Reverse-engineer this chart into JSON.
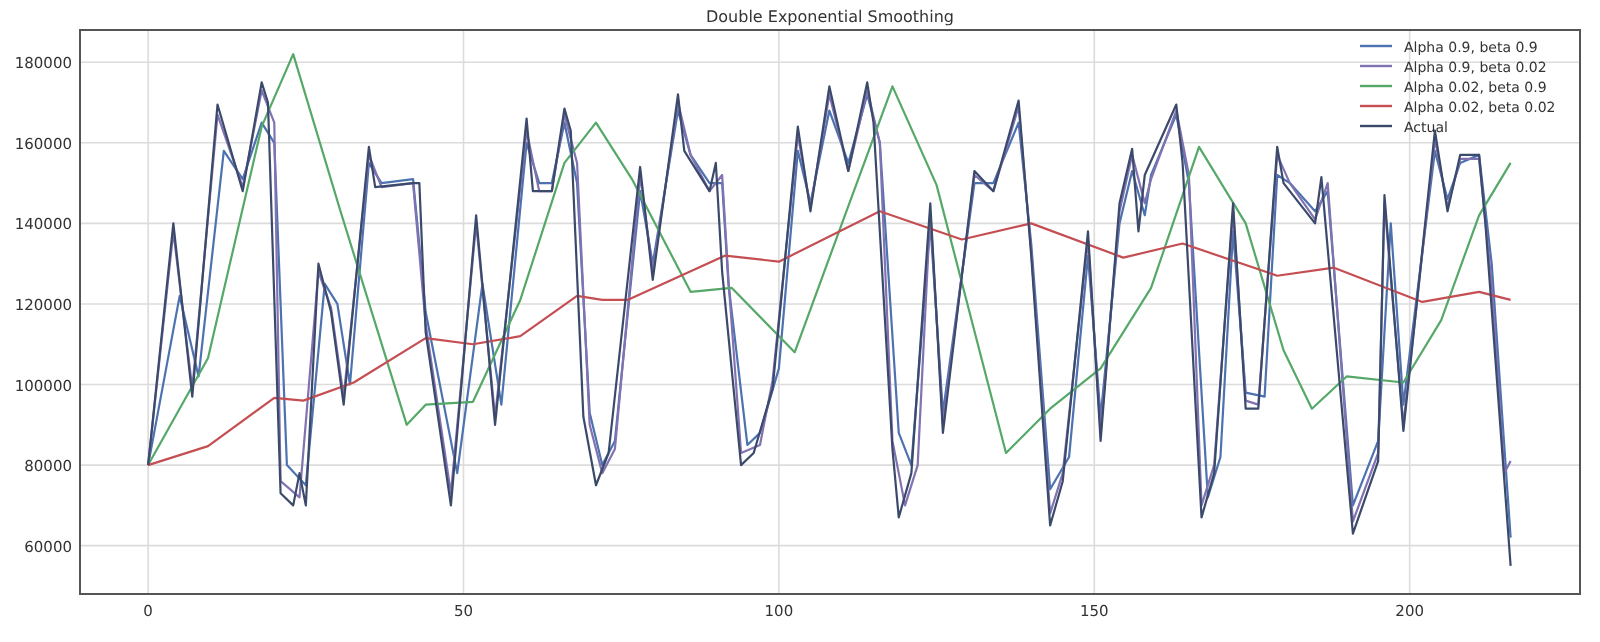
{
  "chart_data": {
    "type": "line",
    "title": "Double Exponential Smoothing",
    "xlim": [
      -10.8,
      227
    ],
    "xticks": [
      0,
      50,
      100,
      150,
      200
    ],
    "ylim": [
      48000,
      188000
    ],
    "yticks": [
      60000,
      80000,
      100000,
      120000,
      140000,
      160000,
      180000
    ],
    "grid": true,
    "legend": "top right",
    "line_style": "solid",
    "marker": "none",
    "series": [
      {
        "name": "Alpha 0.9, beta 0.9",
        "color": "#4c72b0",
        "x": [
          0,
          5,
          8,
          12,
          15,
          18,
          20,
          22,
          25,
          28,
          30,
          32,
          35,
          37,
          42,
          44,
          49,
          53,
          56,
          60,
          62,
          64,
          66,
          68,
          70,
          72,
          74,
          78,
          80,
          84,
          86,
          89,
          91,
          92,
          95,
          97,
          100,
          103,
          105,
          108,
          111,
          114,
          116,
          119,
          121,
          124,
          126,
          131,
          134,
          138,
          140,
          143,
          146,
          149,
          151,
          154,
          156,
          158,
          159,
          163,
          165,
          168,
          170,
          172,
          174,
          177,
          179,
          181,
          185,
          187,
          191,
          195,
          197,
          199,
          204,
          206,
          208,
          211,
          213,
          216
        ],
        "values": [
          80000,
          122000,
          102000,
          158000,
          151000,
          165000,
          160000,
          80000,
          75000,
          125000,
          120000,
          100000,
          155000,
          150000,
          151000,
          118000,
          78000,
          125000,
          95000,
          160000,
          150000,
          150000,
          165000,
          150000,
          93000,
          80000,
          86000,
          148000,
          130000,
          168000,
          157000,
          150000,
          150000,
          125000,
          85000,
          88000,
          104000,
          158000,
          145000,
          168000,
          155000,
          172000,
          160000,
          88000,
          80000,
          140000,
          93000,
          150000,
          150000,
          165000,
          135000,
          74000,
          82000,
          132000,
          92000,
          140000,
          153000,
          142000,
          152000,
          167000,
          150000,
          72000,
          82000,
          138000,
          98000,
          97000,
          152000,
          150000,
          143000,
          148000,
          70000,
          86000,
          140000,
          95000,
          158000,
          146000,
          155000,
          157000,
          130000,
          62000
        ]
      },
      {
        "name": "Alpha 0.9, beta 0.02",
        "color": "#8172b2",
        "x": [
          0,
          4,
          7,
          11,
          15,
          18,
          20,
          21,
          24,
          27,
          29,
          31,
          35,
          37,
          42,
          44,
          48,
          52,
          55,
          60,
          62,
          64,
          66,
          68,
          70,
          72,
          74,
          78,
          80,
          84,
          86,
          89,
          91,
          92,
          94,
          97,
          99,
          103,
          105,
          108,
          111,
          114,
          116,
          118,
          120,
          122,
          124,
          126,
          131,
          134,
          138,
          140,
          143,
          145,
          149,
          151,
          154,
          156,
          158,
          159,
          163,
          165,
          167,
          169,
          172,
          174,
          176,
          179,
          181,
          185,
          187,
          191,
          195,
          196,
          199,
          204,
          206,
          208,
          211,
          213,
          215,
          216
        ],
        "values": [
          80000,
          138000,
          99000,
          167000,
          149000,
          173000,
          165000,
          76000,
          72000,
          128000,
          119000,
          97000,
          157000,
          149000,
          150000,
          115000,
          73000,
          140000,
          92000,
          163000,
          148000,
          148000,
          167000,
          155000,
          90000,
          78000,
          84000,
          152000,
          128000,
          170000,
          157000,
          148000,
          152000,
          126000,
          83000,
          85000,
          101000,
          162000,
          144000,
          172000,
          153000,
          173000,
          160000,
          86000,
          70000,
          80000,
          143000,
          90000,
          152000,
          148000,
          169000,
          133000,
          68000,
          78000,
          136000,
          88000,
          143000,
          157000,
          145000,
          151000,
          168000,
          152000,
          70000,
          80000,
          143000,
          96000,
          95000,
          157000,
          150000,
          141000,
          150000,
          66000,
          83000,
          145000,
          90000,
          161000,
          144000,
          156000,
          156000,
          125000,
          78000,
          81000
        ]
      },
      {
        "name": "Alpha 0.02, beta 0.9",
        "color": "#55a868",
        "x": [
          0,
          9.5,
          18,
          23,
          30.5,
          41,
          44,
          51.5,
          59,
          66,
          71,
          76.7,
          86,
          92.5,
          102.5,
          110,
          118,
          125,
          136,
          143,
          151,
          159,
          166.6,
          174,
          180,
          184.5,
          190,
          199,
          205,
          211,
          216
        ],
        "values": [
          80000,
          106600,
          164000,
          182000,
          143000,
          90000,
          95000,
          95700,
          121000,
          155000,
          165000,
          151000,
          123000,
          124000,
          108000,
          140000,
          174000,
          149500,
          83000,
          94000,
          104000,
          124000,
          159000,
          140000,
          108500,
          94000,
          102000,
          100500,
          116000,
          142000,
          155000
        ]
      },
      {
        "name": "Alpha 0.02, beta 0.02",
        "color": "#c44e52",
        "x": [
          0,
          9.5,
          20,
          24.6,
          32.6,
          44,
          51.5,
          59,
          68,
          72,
          76,
          91.5,
          100,
          116,
          129,
          140,
          154.6,
          164,
          179,
          188,
          202,
          211,
          216
        ],
        "values": [
          80000,
          84700,
          96700,
          96000,
          100500,
          111500,
          110000,
          112000,
          122000,
          121000,
          121000,
          132000,
          130500,
          143000,
          136000,
          140000,
          131500,
          135000,
          127000,
          129000,
          120500,
          123000,
          121000
        ]
      },
      {
        "name": "Actual",
        "color": "#3b4a6b",
        "x": [
          0,
          4,
          7,
          11,
          15,
          18,
          19,
          21,
          23,
          24,
          25,
          27,
          29,
          31,
          35,
          36,
          42,
          43,
          44,
          48,
          52,
          55,
          60,
          61,
          64,
          66,
          67,
          69,
          71,
          73,
          78,
          80,
          84,
          85,
          89,
          90,
          91,
          94,
          96,
          99,
          103,
          105,
          108,
          111,
          114,
          115,
          118,
          119,
          121,
          124,
          126,
          131,
          134,
          138,
          140,
          143,
          145,
          149,
          151,
          154,
          156,
          157,
          158,
          163,
          164,
          167,
          169,
          172,
          174,
          176,
          179,
          180,
          185,
          186,
          191,
          195,
          196,
          199,
          204,
          206,
          208,
          211,
          212,
          216
        ],
        "values": [
          80000,
          140000,
          97000,
          169500,
          148000,
          175000,
          170000,
          73000,
          70000,
          78000,
          70000,
          130000,
          118000,
          95000,
          159000,
          149000,
          150000,
          150000,
          113000,
          70000,
          142000,
          90000,
          166000,
          148000,
          148000,
          168500,
          163000,
          92000,
          75000,
          83000,
          154000,
          126000,
          172000,
          158000,
          148000,
          155000,
          128000,
          80000,
          83000,
          99000,
          164000,
          143000,
          174000,
          153000,
          175000,
          165000,
          84000,
          67000,
          78000,
          145000,
          88000,
          153000,
          148000,
          170500,
          132000,
          65000,
          76000,
          138000,
          86000,
          145000,
          158500,
          138000,
          152000,
          169500,
          155000,
          67000,
          78000,
          145000,
          94000,
          94000,
          159000,
          150000,
          140000,
          151500,
          63000,
          81000,
          147000,
          88500,
          163000,
          143000,
          157000,
          157000,
          140000,
          55000
        ]
      }
    ]
  }
}
